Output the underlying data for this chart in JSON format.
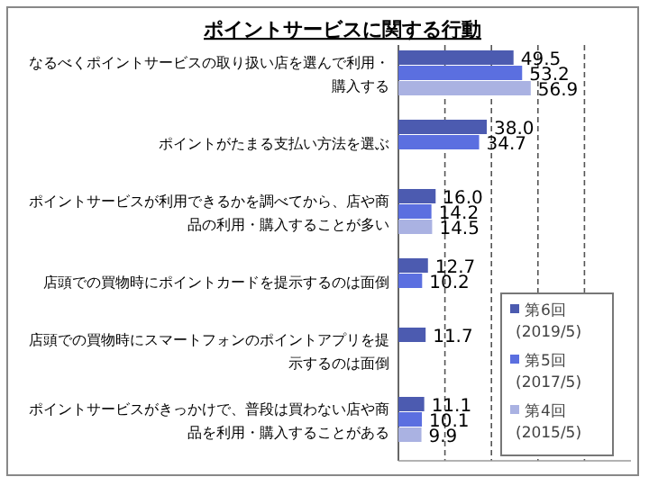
{
  "chart_data": {
    "type": "bar",
    "orientation": "horizontal",
    "title": "ポイントサービスに関する行動",
    "categories": [
      "なるべくポイントサービスの取り扱い店を選んで利用・購入する",
      "ポイントがたまる支払い方法を選ぶ",
      "ポイントサービスが利用できるかを調べてから、店や商品の利用・購入することが多い",
      "店頭での買物時にポイントカードを提示するのは面倒",
      "店頭での買物時にスマートフォンのポイントアプリを提示するのは面倒",
      "ポイントサービスがきっかけで、普段は買わない店や商品を利用・購入することがある"
    ],
    "series": [
      {
        "name": "第6回\n(2019/5)",
        "color": "#4c5bb0",
        "values": [
          49.5,
          38.0,
          16.0,
          12.7,
          11.7,
          11.1
        ],
        "value_labels": [
          "49.5",
          "38.0",
          "16.0",
          "12.7",
          "11.7",
          "11.1"
        ]
      },
      {
        "name": "第5回\n(2017/5)",
        "color": "#5b6fe0",
        "values": [
          53.2,
          34.7,
          14.2,
          10.2,
          null,
          10.1
        ],
        "value_labels": [
          "53.2",
          "34.7",
          "14.2",
          "10.2",
          null,
          "10.1"
        ]
      },
      {
        "name": "第4回\n(2015/5)",
        "color": "#aab2e2",
        "values": [
          56.9,
          null,
          14.5,
          null,
          null,
          9.9
        ],
        "value_labels": [
          "56.9",
          null,
          "14.5",
          null,
          null,
          "9.9"
        ]
      }
    ],
    "xlim": [
      0,
      100
    ],
    "xticks": [
      {
        "value": 20,
        "label": null
      },
      {
        "value": 40,
        "label": null
      },
      {
        "value": 60,
        "label": null
      },
      {
        "value": 80,
        "label": null
      }
    ],
    "grid": "x",
    "legend": "bottom right",
    "tick_labels": "y"
  }
}
